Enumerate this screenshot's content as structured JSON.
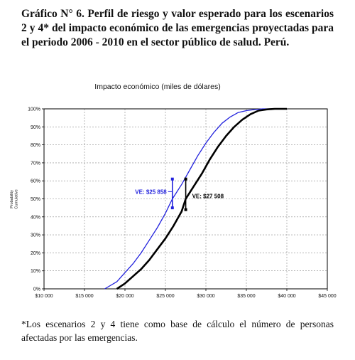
{
  "caption": "Gráfico N° 6. Perfil de riesgo y valor esperado para los escenarios 2 y 4* del impacto económico de las emergencias proyectadas para el periodo 2006 - 2010 en el sector público de salud. Perú.",
  "footnote": "*Los escenarios 2 y 4 tiene como base de cálculo el número de personas afectadas por las emergencias.",
  "chart_data": {
    "type": "line",
    "title": "Impacto económico (miles de dólares)",
    "ylabel": "Probability\nCumulative",
    "xlim": [
      10000,
      45000
    ],
    "ylim": [
      0,
      1
    ],
    "x_ticks": [
      "$10 000",
      "$15 000",
      "$20 000",
      "$25 000",
      "$30 000",
      "$35 000",
      "$40 000",
      "$45 000"
    ],
    "y_ticks": [
      "0%",
      "10%",
      "20%",
      "30%",
      "40%",
      "50%",
      "60%",
      "70%",
      "80%",
      "90%",
      "100%"
    ],
    "series": [
      {
        "color": "#2222dd",
        "stroke_width": 1.3,
        "x": [
          17500,
          19000,
          20000,
          21000,
          22000,
          23000,
          24000,
          25000,
          25858,
          27000,
          28000,
          29000,
          30000,
          31000,
          32000,
          33000,
          34000,
          35000,
          36000,
          37000,
          38000
        ],
        "y": [
          0.0,
          0.04,
          0.09,
          0.14,
          0.2,
          0.27,
          0.34,
          0.42,
          0.5,
          0.58,
          0.66,
          0.74,
          0.81,
          0.87,
          0.92,
          0.955,
          0.98,
          0.99,
          0.996,
          1.0,
          1.0
        ]
      },
      {
        "color": "#000000",
        "stroke_width": 2.6,
        "x": [
          19000,
          20000,
          21000,
          22000,
          23000,
          24000,
          25000,
          26000,
          27000,
          27508,
          28500,
          29500,
          30500,
          31500,
          32500,
          33500,
          34500,
          35500,
          36500,
          37500,
          38500,
          40000
        ],
        "y": [
          0.0,
          0.03,
          0.07,
          0.11,
          0.16,
          0.22,
          0.28,
          0.35,
          0.43,
          0.5,
          0.57,
          0.64,
          0.72,
          0.79,
          0.85,
          0.9,
          0.94,
          0.97,
          0.99,
          0.997,
          1.0,
          1.0
        ]
      }
    ],
    "annotations": [
      {
        "label": "VE: $25 858",
        "x": 25858,
        "y_low": 0.45,
        "y_high": 0.61,
        "color": "#2222dd"
      },
      {
        "label": "VE: $27 508",
        "x": 27508,
        "y_low": 0.44,
        "y_high": 0.61,
        "color": "#000000"
      }
    ]
  }
}
